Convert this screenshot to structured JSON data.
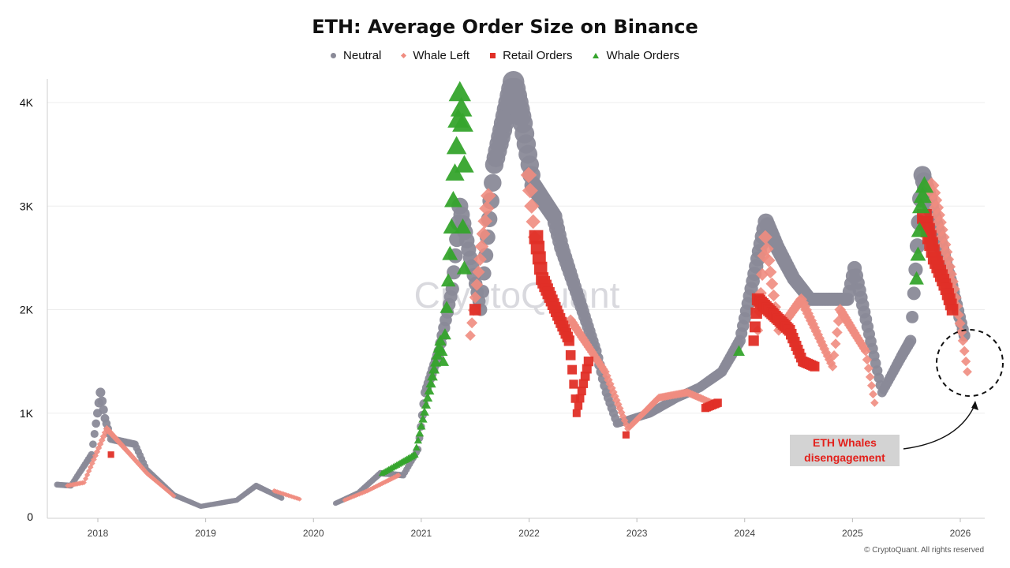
{
  "chart_data": {
    "type": "scatter",
    "title": "ETH: Average Order Size on Binance",
    "legend_position": "top-center",
    "ylim": [
      0,
      4250
    ],
    "xlim": [
      "2017-08",
      "2026-03"
    ],
    "y_ticks": [
      {
        "value": 0,
        "label": "0"
      },
      {
        "value": 1000,
        "label": "1K"
      },
      {
        "value": 2000,
        "label": "2K"
      },
      {
        "value": 3000,
        "label": "3K"
      },
      {
        "value": 4000,
        "label": "4K"
      }
    ],
    "x_ticks": [
      "2018",
      "2019",
      "2020",
      "2021",
      "2022",
      "2023",
      "2024",
      "2025",
      "2026"
    ],
    "grid": "horizontal",
    "watermark": "CryptoQuant",
    "series": [
      {
        "name": "Neutral",
        "marker": "circle",
        "color": "#8a8a98",
        "points": [
          [
            "2017-08-15",
            310
          ],
          [
            "2017-10-01",
            300
          ],
          [
            "2017-12-10",
            600
          ],
          [
            "2018-01-10",
            1200
          ],
          [
            "2018-01-25",
            950
          ],
          [
            "2018-02-15",
            750
          ],
          [
            "2018-05-05",
            700
          ],
          [
            "2018-06-15",
            450
          ],
          [
            "2018-09-15",
            210
          ],
          [
            "2018-12-15",
            100
          ],
          [
            "2019-04-15",
            160
          ],
          [
            "2019-06-20",
            300
          ],
          [
            "2019-09-15",
            180
          ],
          [
            "2020-03-15",
            130
          ],
          [
            "2020-06-01",
            230
          ],
          [
            "2020-08-15",
            420
          ],
          [
            "2020-11-01",
            400
          ],
          [
            "2020-12-20",
            650
          ],
          [
            "2021-01-15",
            1200
          ],
          [
            "2021-03-01",
            1600
          ],
          [
            "2021-04-15",
            2200
          ],
          [
            "2021-05-10",
            3000
          ],
          [
            "2021-06-15",
            2500
          ],
          [
            "2021-07-20",
            2000
          ],
          [
            "2021-09-05",
            3400
          ],
          [
            "2021-11-09",
            4200
          ],
          [
            "2021-12-10",
            3800
          ],
          [
            "2022-01-15",
            3200
          ],
          [
            "2022-03-25",
            2900
          ],
          [
            "2022-04-20",
            2600
          ],
          [
            "2022-08-15",
            1600
          ],
          [
            "2022-09-20",
            1200
          ],
          [
            "2022-10-25",
            900
          ],
          [
            "2023-02-15",
            1000
          ],
          [
            "2023-05-15",
            1150
          ],
          [
            "2023-08-01",
            1250
          ],
          [
            "2023-10-15",
            1400
          ],
          [
            "2023-12-15",
            1700
          ],
          [
            "2024-03-12",
            2850
          ],
          [
            "2024-04-20",
            2600
          ],
          [
            "2024-06-15",
            2300
          ],
          [
            "2024-08-10",
            2100
          ],
          [
            "2024-12-15",
            2100
          ],
          [
            "2025-01-08",
            2400
          ],
          [
            "2025-04-10",
            1200
          ],
          [
            "2025-06-15",
            1550
          ],
          [
            "2025-07-15",
            1700
          ],
          [
            "2025-08-25",
            3300
          ],
          [
            "2026-01-15",
            1750
          ]
        ]
      },
      {
        "name": "Whale Left",
        "marker": "diamond",
        "color": "#f08c80",
        "points": [
          [
            "2017-09-20",
            300
          ],
          [
            "2017-11-15",
            330
          ],
          [
            "2018-02-01",
            850
          ],
          [
            "2018-04-20",
            600
          ],
          [
            "2018-06-15",
            420
          ],
          [
            "2018-09-15",
            200
          ],
          [
            "2019-08-20",
            250
          ],
          [
            "2019-11-15",
            170
          ],
          [
            "2020-04-15",
            160
          ],
          [
            "2020-07-01",
            250
          ],
          [
            "2020-10-15",
            400
          ],
          [
            "2021-06-15",
            1750
          ],
          [
            "2021-08-15",
            3100
          ],
          [
            "2021-12-30",
            3300
          ],
          [
            "2022-01-20",
            2700
          ],
          [
            "2022-05-20",
            1900
          ],
          [
            "2022-09-15",
            1400
          ],
          [
            "2022-12-01",
            850
          ],
          [
            "2023-03-15",
            1150
          ],
          [
            "2023-06-20",
            1200
          ],
          [
            "2023-09-10",
            1100
          ],
          [
            "2024-02-15",
            1800
          ],
          [
            "2024-03-10",
            2700
          ],
          [
            "2024-04-25",
            1800
          ],
          [
            "2024-07-10",
            2100
          ],
          [
            "2024-10-25",
            1450
          ],
          [
            "2024-11-20",
            2000
          ],
          [
            "2025-02-15",
            1600
          ],
          [
            "2025-03-15",
            1100
          ],
          [
            "2025-09-25",
            3200
          ],
          [
            "2025-12-10",
            2200
          ],
          [
            "2026-01-10",
            1700
          ],
          [
            "2026-01-25",
            1400
          ]
        ]
      },
      {
        "name": "Retail Orders",
        "marker": "square",
        "color": "#e02f27",
        "points": [
          [
            "2018-02-15",
            600
          ],
          [
            "2021-07-01",
            2000
          ],
          [
            "2022-01-25",
            2700
          ],
          [
            "2022-02-15",
            2300
          ],
          [
            "2022-05-15",
            1700
          ],
          [
            "2022-06-10",
            1000
          ],
          [
            "2022-07-20",
            1500
          ],
          [
            "2022-11-25",
            790
          ],
          [
            "2023-08-20",
            1050
          ],
          [
            "2023-10-01",
            1100
          ],
          [
            "2024-02-01",
            1700
          ],
          [
            "2024-02-15",
            2100
          ],
          [
            "2024-06-01",
            1800
          ],
          [
            "2024-07-15",
            1500
          ],
          [
            "2024-08-25",
            1450
          ],
          [
            "2025-09-01",
            2900
          ],
          [
            "2025-10-05",
            2500
          ],
          [
            "2025-11-15",
            2200
          ],
          [
            "2025-12-05",
            2000
          ]
        ]
      },
      {
        "name": "Whale Orders",
        "marker": "triangle",
        "color": "#35a42c",
        "points": [
          [
            "2020-08-20",
            420
          ],
          [
            "2020-12-10",
            600
          ],
          [
            "2021-03-05",
            1700
          ],
          [
            "2021-03-15",
            1500
          ],
          [
            "2021-05-10",
            4100
          ],
          [
            "2021-05-20",
            3800
          ],
          [
            "2021-05-25",
            3400
          ],
          [
            "2021-05-20",
            2800
          ],
          [
            "2021-05-25",
            2400
          ],
          [
            "2023-12-12",
            1600
          ],
          [
            "2025-08-05",
            2300
          ],
          [
            "2025-08-20",
            3000
          ],
          [
            "2025-09-01",
            3200
          ]
        ]
      }
    ]
  },
  "legend": [
    {
      "label": "Neutral"
    },
    {
      "label": "Whale Left"
    },
    {
      "label": "Retail Orders"
    },
    {
      "label": "Whale Orders"
    }
  ],
  "annotation": {
    "line1": "ETH Whales",
    "line2": "disengagement"
  },
  "copyright": "© CryptoQuant. All rights reserved"
}
